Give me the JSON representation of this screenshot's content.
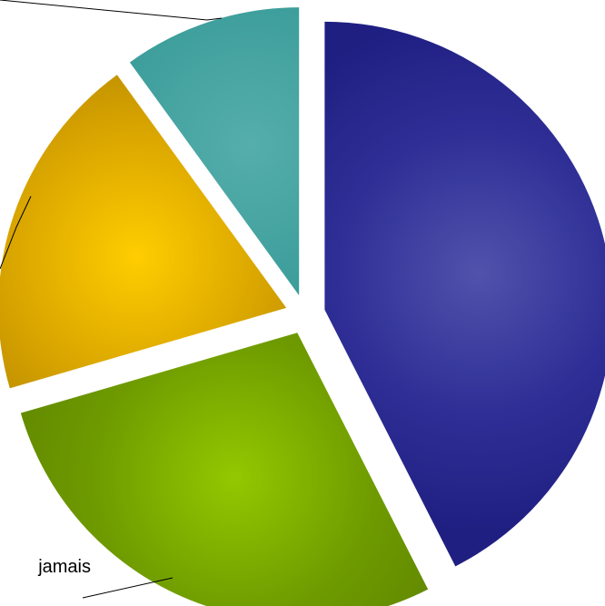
{
  "chart_data": {
    "type": "pie",
    "style": "exploded-3d-gradient",
    "slices": [
      {
        "label": "",
        "value": 42.5,
        "color": "#2e2e96",
        "gradient_light": "#5052ab",
        "gradient_dark": "#1f1f82"
      },
      {
        "label": "jamais",
        "value": 28.0,
        "color": "#6e9a00",
        "gradient_light": "#93c800",
        "gradient_dark": "#5f8400"
      },
      {
        "label": "",
        "value": 19.5,
        "color": "#d4a000",
        "gradient_light": "#ffcd00",
        "gradient_dark": "#a67e00"
      },
      {
        "label": "",
        "value": 10.0,
        "color": "#3d9e9b",
        "gradient_light": "#55aeab",
        "gradient_dark": "#2f8a87"
      }
    ],
    "legend": "none"
  }
}
